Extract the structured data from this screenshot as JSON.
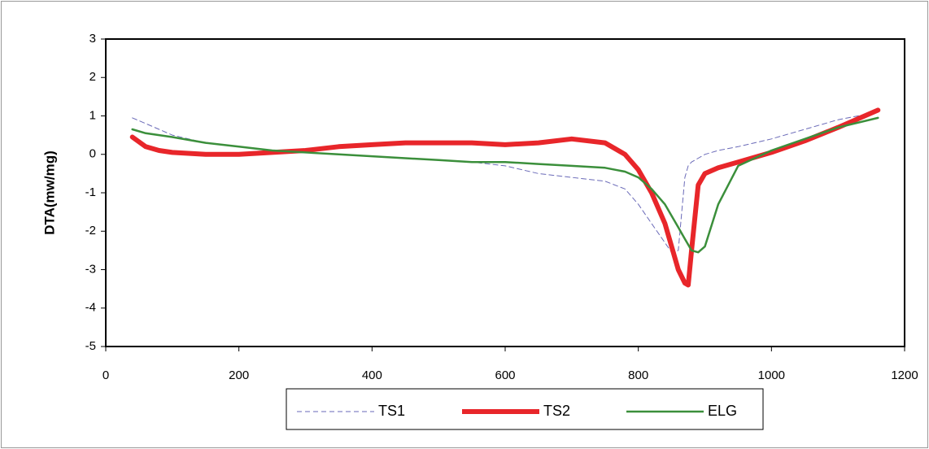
{
  "chart_data": {
    "type": "line",
    "y_label": "DTA(mw/mg)",
    "x": [
      40,
      60,
      80,
      100,
      150,
      200,
      250,
      300,
      350,
      400,
      450,
      500,
      550,
      600,
      650,
      700,
      750,
      780,
      800,
      820,
      840,
      850,
      860,
      870,
      875,
      880,
      890,
      900,
      920,
      950,
      1000,
      1050,
      1100,
      1160
    ],
    "series": [
      {
        "name": "TS1",
        "color": "#6a6ab8",
        "dashed": true,
        "line_width": 1,
        "values": [
          0.95,
          0.8,
          0.65,
          0.5,
          0.3,
          0.2,
          0.1,
          0.05,
          0,
          -0.05,
          -0.1,
          -0.15,
          -0.2,
          -0.3,
          -0.5,
          -0.6,
          -0.7,
          -0.9,
          -1.3,
          -1.8,
          -2.3,
          -2.55,
          -2.5,
          -0.6,
          -0.3,
          -0.2,
          -0.1,
          0,
          0.1,
          0.2,
          0.4,
          0.65,
          0.9,
          1.1
        ]
      },
      {
        "name": "TS2",
        "color": "#e8262a",
        "dashed": false,
        "line_width": 6,
        "values": [
          0.45,
          0.2,
          0.1,
          0.05,
          0,
          0,
          0.05,
          0.1,
          0.2,
          0.25,
          0.3,
          0.3,
          0.3,
          0.25,
          0.3,
          0.4,
          0.3,
          0,
          -0.4,
          -1,
          -1.8,
          -2.4,
          -3,
          -3.35,
          -3.4,
          -2.5,
          -0.8,
          -0.5,
          -0.35,
          -0.2,
          0.05,
          0.35,
          0.7,
          1.15
        ]
      },
      {
        "name": "ELG",
        "color": "#3b8f3b",
        "dashed": false,
        "line_width": 2.5,
        "values": [
          0.65,
          0.55,
          0.5,
          0.45,
          0.3,
          0.2,
          0.1,
          0.05,
          0,
          -0.05,
          -0.1,
          -0.15,
          -0.2,
          -0.2,
          -0.25,
          -0.3,
          -0.35,
          -0.45,
          -0.6,
          -0.9,
          -1.3,
          -1.6,
          -1.9,
          -2.2,
          -2.35,
          -2.5,
          -2.55,
          -2.4,
          -1.3,
          -0.3,
          0.1,
          0.4,
          0.7,
          0.95
        ]
      }
    ],
    "xlim": [
      0,
      1200
    ],
    "xticks": [
      0,
      200,
      400,
      600,
      800,
      1000,
      1200
    ],
    "ylim": [
      -5,
      3
    ],
    "yticks": [
      -5,
      -4,
      -3,
      -2,
      -1,
      0,
      1,
      2,
      3
    ],
    "grid": false
  }
}
